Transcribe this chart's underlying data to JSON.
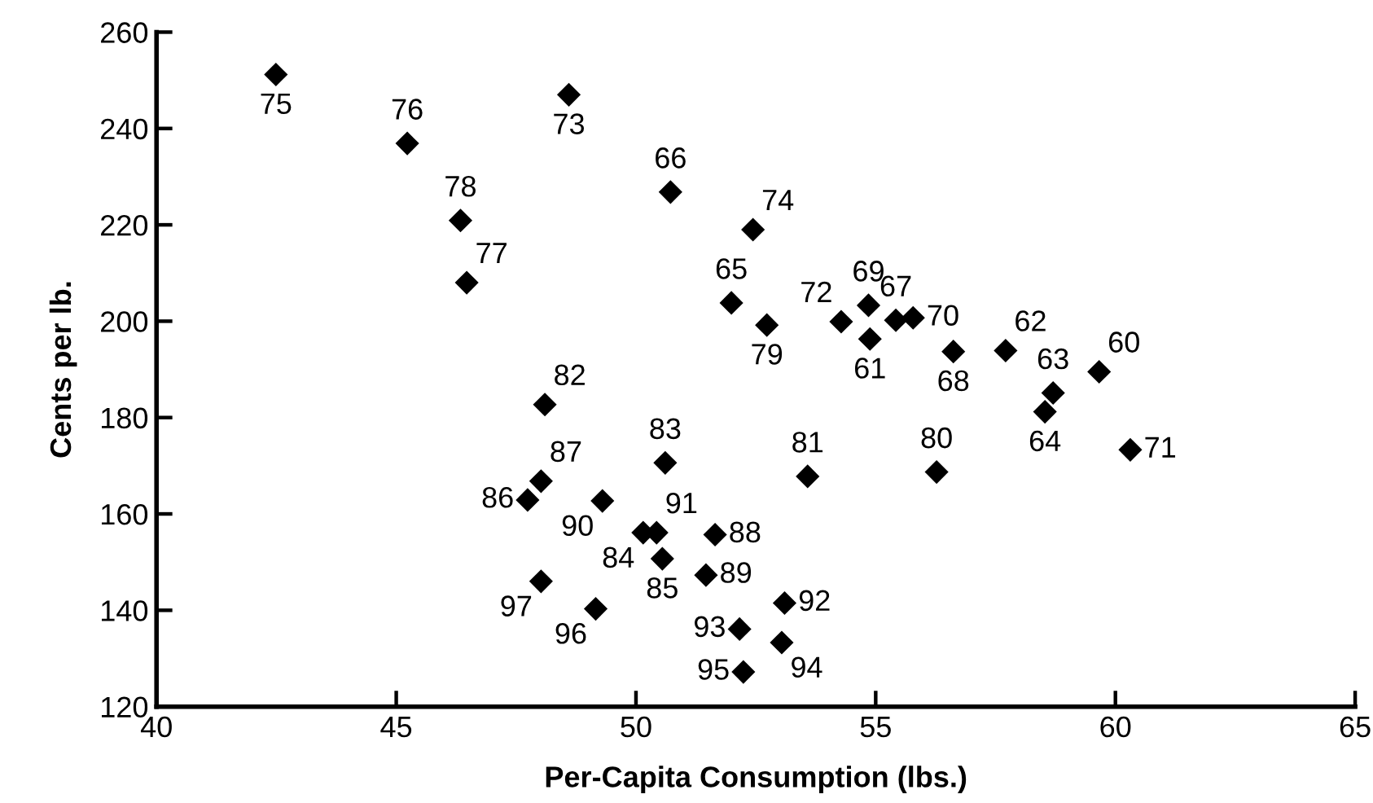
{
  "chart_data": {
    "type": "scatter",
    "xlabel": "Per-Capita Consumption (lbs.)",
    "ylabel": "Cents per lb.",
    "x": [
      42.49,
      45.23,
      48.6,
      50.72,
      46.34,
      46.47,
      52.44,
      51.99,
      52.73,
      54.28,
      54.85,
      54.88,
      55.42,
      55.78,
      56.62,
      57.71,
      58.7,
      58.53,
      59.66,
      60.31,
      53.58,
      56.27,
      50.61,
      48.02,
      47.74,
      49.3,
      50.15,
      50.43,
      51.65,
      50.55,
      51.46,
      48.02,
      49.16,
      53.1,
      52.16,
      53.04,
      52.24,
      48.1
    ],
    "values": [
      251.2,
      236.9,
      247,
      226.8,
      220.9,
      208,
      219,
      203.8,
      199.2,
      199.9,
      203.3,
      196.3,
      200.2,
      200.7,
      193.7,
      193.9,
      185.1,
      181.2,
      189.5,
      173.3,
      167.8,
      168.7,
      170.6,
      166.8,
      162.9,
      162.7,
      156.1,
      156.1,
      155.7,
      150.7,
      147.3,
      146,
      140.3,
      141.5,
      136.1,
      133.3,
      127.2,
      182.7
    ],
    "color": "#000000",
    "marker": "diamond",
    "grid": false,
    "xlim": [
      40,
      65
    ],
    "xticks": [
      40,
      45,
      50,
      55,
      60,
      65
    ],
    "ylim": [
      120,
      260
    ],
    "yticks": [
      120,
      140,
      160,
      180,
      200,
      220,
      240,
      260
    ],
    "annotations": [
      {
        "text": "75",
        "x": 42.49,
        "y": 251.2
      },
      {
        "text": "76",
        "x": 45.23,
        "y": 236.9
      },
      {
        "text": "73",
        "x": 48.6,
        "y": 247
      },
      {
        "text": "66",
        "x": 50.72,
        "y": 226.8
      },
      {
        "text": "78",
        "x": 46.34,
        "y": 220.9
      },
      {
        "text": "77",
        "x": 46.47,
        "y": 208
      },
      {
        "text": "74",
        "x": 52.44,
        "y": 219
      },
      {
        "text": "65",
        "x": 51.99,
        "y": 203.8
      },
      {
        "text": "79",
        "x": 52.73,
        "y": 199.2
      },
      {
        "text": "72",
        "x": 54.28,
        "y": 199.9
      },
      {
        "text": "69",
        "x": 54.85,
        "y": 203.3
      },
      {
        "text": "61",
        "x": 54.88,
        "y": 196.3
      },
      {
        "text": "67",
        "x": 55.42,
        "y": 200.2
      },
      {
        "text": "70",
        "x": 55.78,
        "y": 200.7
      },
      {
        "text": "68",
        "x": 56.62,
        "y": 193.7
      },
      {
        "text": "62",
        "x": 57.71,
        "y": 193.9
      },
      {
        "text": "63",
        "x": 58.7,
        "y": 185.1
      },
      {
        "text": "64",
        "x": 58.53,
        "y": 181.2
      },
      {
        "text": "60",
        "x": 59.66,
        "y": 189.5
      },
      {
        "text": "71",
        "x": 60.31,
        "y": 173.3
      },
      {
        "text": "81",
        "x": 53.58,
        "y": 167.8
      },
      {
        "text": "80",
        "x": 56.27,
        "y": 168.7
      },
      {
        "text": "83",
        "x": 50.61,
        "y": 170.6
      },
      {
        "text": "87",
        "x": 48.02,
        "y": 166.8
      },
      {
        "text": "86",
        "x": 47.74,
        "y": 162.9
      },
      {
        "text": "90",
        "x": 49.3,
        "y": 162.7
      },
      {
        "text": "84",
        "x": 50.15,
        "y": 156.1
      },
      {
        "text": "91",
        "x": 50.43,
        "y": 156.1
      },
      {
        "text": "88",
        "x": 51.65,
        "y": 155.7
      },
      {
        "text": "85",
        "x": 50.55,
        "y": 150.7
      },
      {
        "text": "89",
        "x": 51.46,
        "y": 147.3
      },
      {
        "text": "97",
        "x": 48.02,
        "y": 146
      },
      {
        "text": "96",
        "x": 49.16,
        "y": 140.3
      },
      {
        "text": "92",
        "x": 53.1,
        "y": 141.5
      },
      {
        "text": "93",
        "x": 52.16,
        "y": 136.1
      },
      {
        "text": "94",
        "x": 53.04,
        "y": 133.3
      },
      {
        "text": "95",
        "x": 52.24,
        "y": 127.2
      },
      {
        "text": "82",
        "x": 48.1,
        "y": 182.7
      }
    ]
  }
}
